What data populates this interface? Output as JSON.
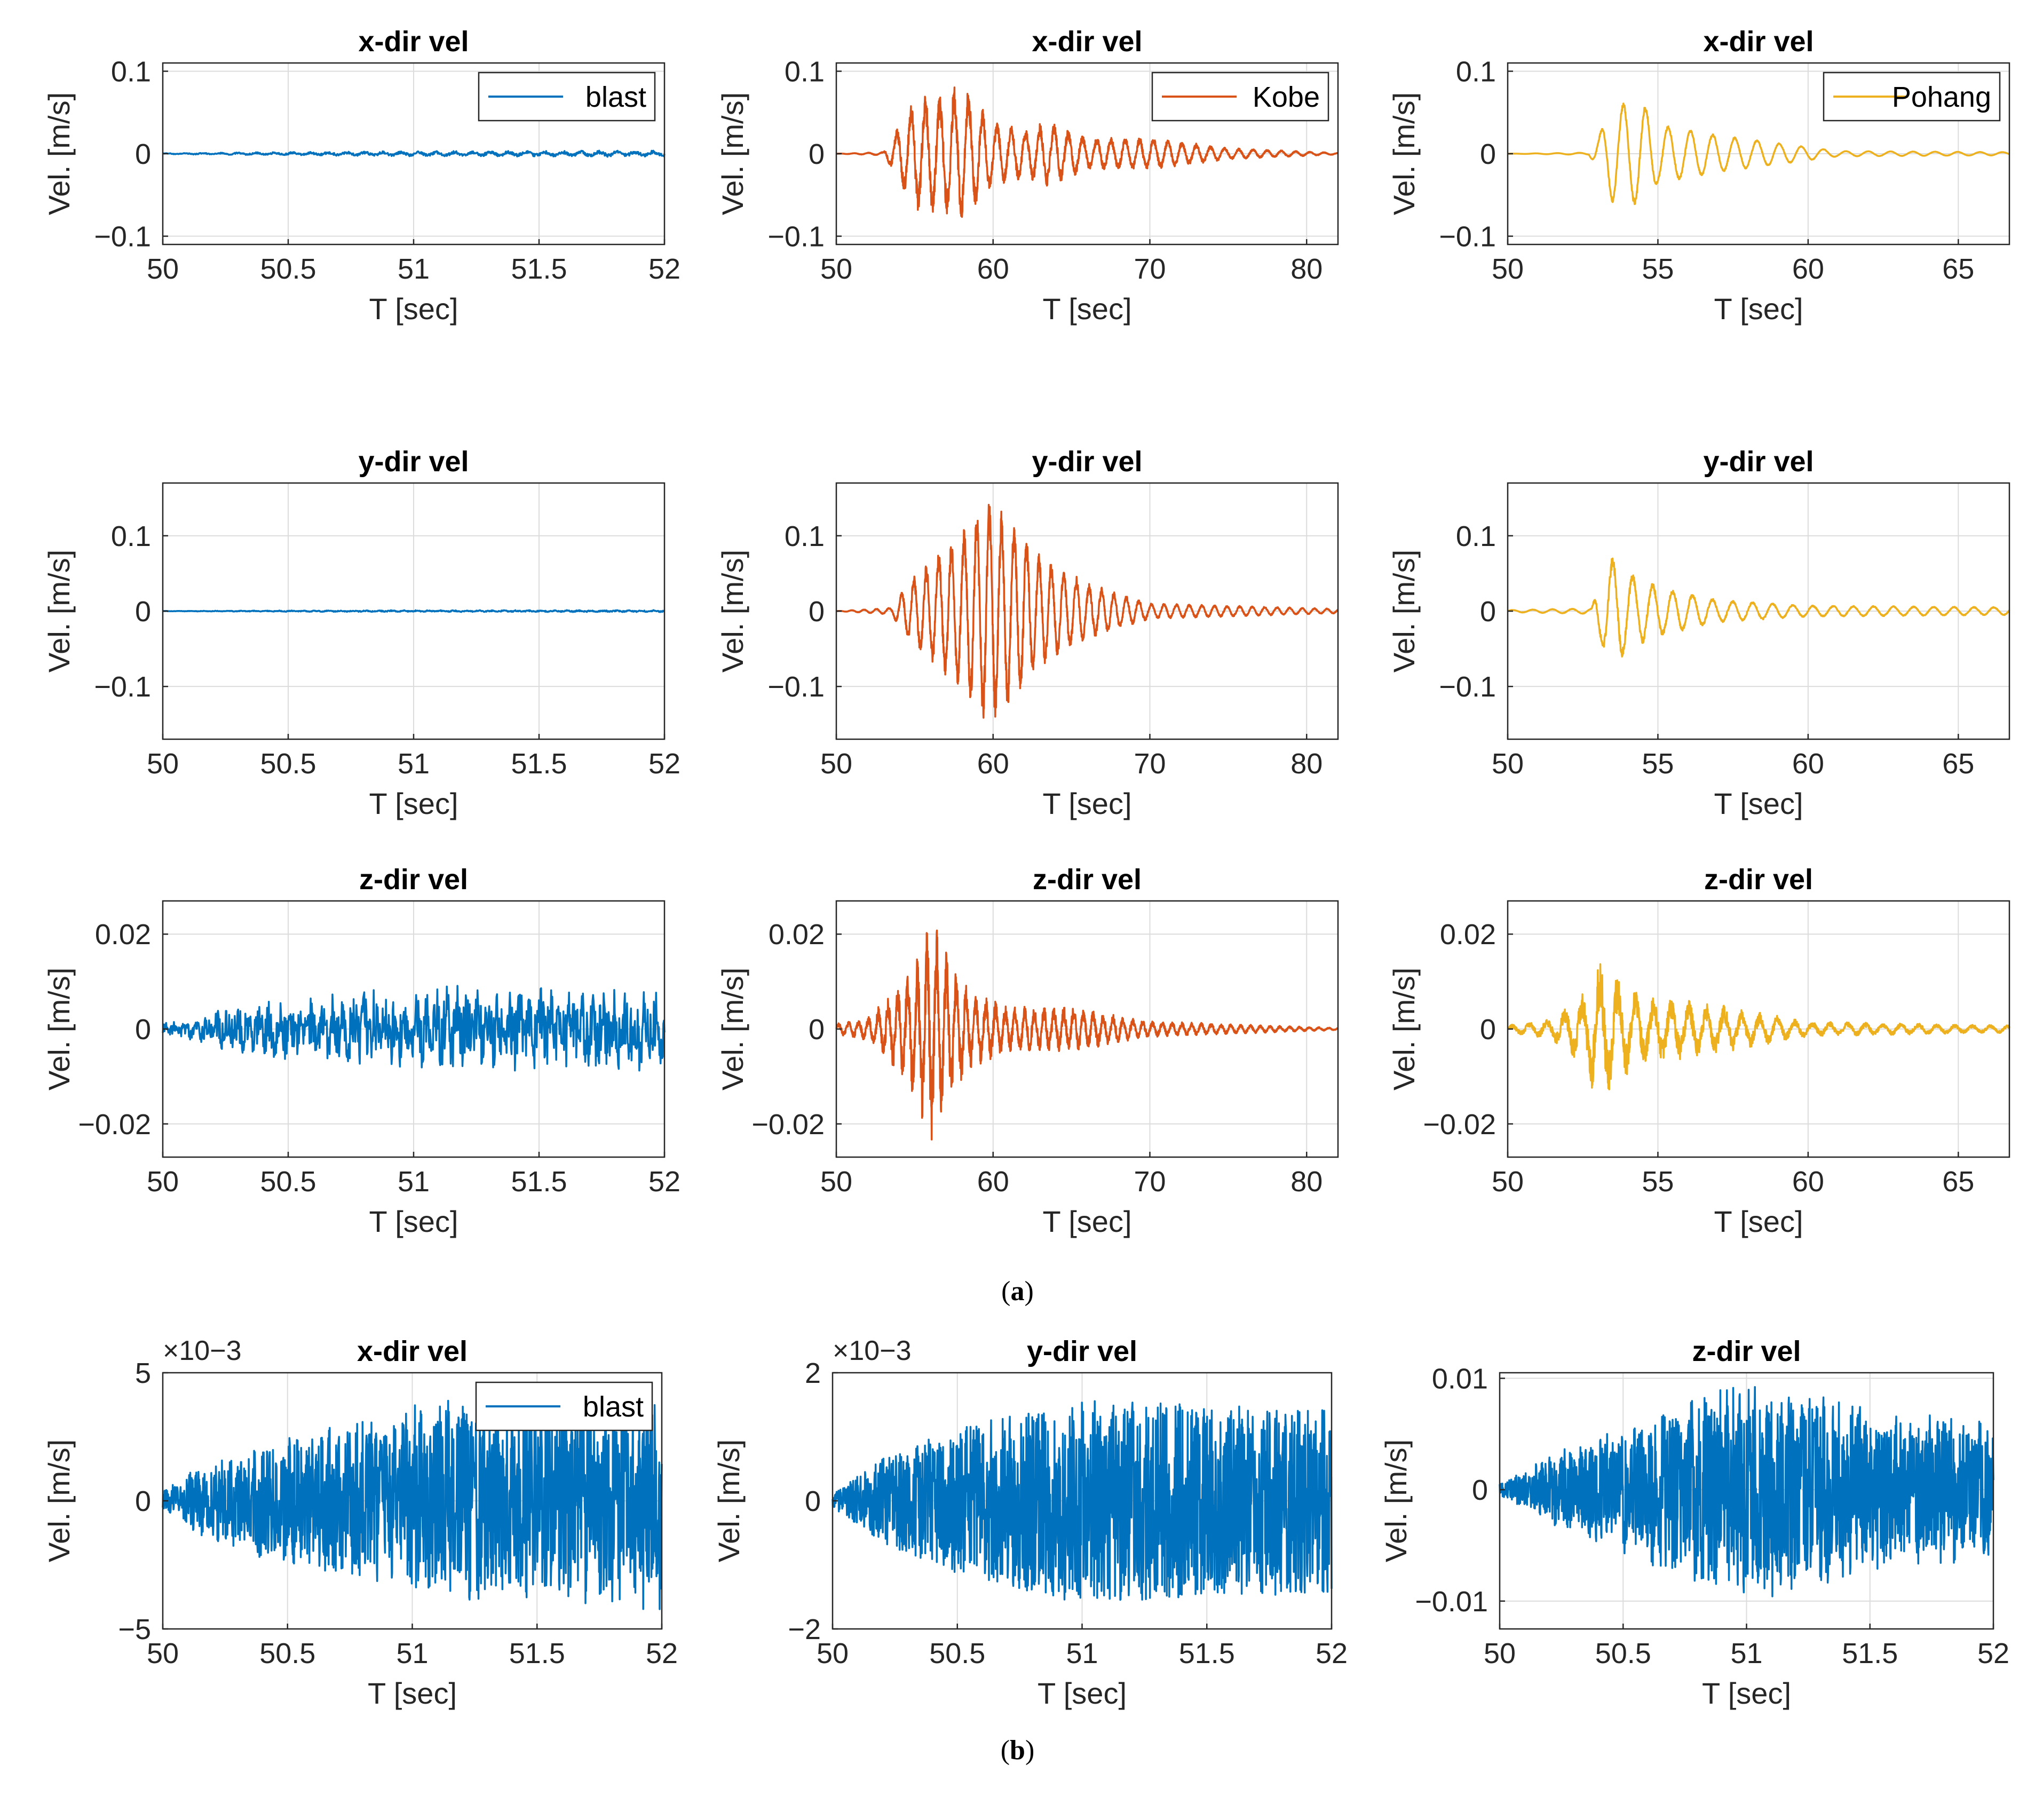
{
  "colors": {
    "blast": "#0072BD",
    "kobe": "#D95319",
    "pohang": "#EDB120",
    "axis": "#262626",
    "grid": "#dcdcdc"
  },
  "panel_labels": {
    "a": "a",
    "b": "b"
  },
  "chart_data": [
    {
      "id": "a11",
      "type": "line",
      "title": "x-dir vel",
      "xlabel": "T [sec]",
      "ylabel": "Vel. [m/s]",
      "xlim": [
        50,
        52
      ],
      "ylim": [
        -0.11,
        0.11
      ],
      "xticks": [
        50,
        50.5,
        51,
        51.5,
        52
      ],
      "xtick_labels": [
        "50",
        "50.5",
        "51",
        "51.5",
        "52"
      ],
      "yticks": [
        -0.1,
        0,
        0.1
      ],
      "ytick_labels": [
        "−0.1",
        "0",
        "0.1"
      ],
      "legend": "blast",
      "legend_position": "top-right",
      "series": [
        {
          "name": "blast",
          "color_key": "blast",
          "signal": {
            "start": 50.0,
            "end": 52.0,
            "n": 900,
            "peak": 0.004,
            "envelope": [
              [
                50,
                0.15
              ],
              [
                50.3,
                0.4
              ],
              [
                50.6,
                0.6
              ],
              [
                51,
                0.8
              ],
              [
                51.5,
                0.9
              ],
              [
                52,
                1.0
              ]
            ],
            "freq": 14,
            "noise": 0.5,
            "seed": 3
          }
        }
      ]
    },
    {
      "id": "a12",
      "type": "line",
      "title": "x-dir vel",
      "xlabel": "T [sec]",
      "ylabel": "Vel. [m/s]",
      "xlim": [
        50,
        82
      ],
      "ylim": [
        -0.11,
        0.11
      ],
      "xticks": [
        50,
        60,
        70,
        80
      ],
      "xtick_labels": [
        "50",
        "60",
        "70",
        "80"
      ],
      "yticks": [
        -0.1,
        0,
        0.1
      ],
      "ytick_labels": [
        "−0.1",
        "0",
        "0.1"
      ],
      "legend": "Kobe",
      "legend_position": "top-right",
      "series": [
        {
          "name": "Kobe",
          "color_key": "kobe",
          "signal": {
            "start": 50.0,
            "end": 82.0,
            "n": 2400,
            "peak": 0.1,
            "envelope": [
              [
                50,
                0
              ],
              [
                53,
                0.02
              ],
              [
                54,
                0.35
              ],
              [
                55,
                0.7
              ],
              [
                57,
                0.72
              ],
              [
                58,
                0.9
              ],
              [
                60,
                0.4
              ],
              [
                62,
                0.3
              ],
              [
                63.5,
                0.4
              ],
              [
                66,
                0.2
              ],
              [
                70,
                0.2
              ],
              [
                75,
                0.07
              ],
              [
                82,
                0.01
              ]
            ],
            "freq": 1.1,
            "noise": 0.2,
            "seed": 7
          }
        }
      ]
    },
    {
      "id": "a13",
      "type": "line",
      "title": "x-dir vel",
      "xlabel": "T [sec]",
      "ylabel": "Vel. [m/s]",
      "xlim": [
        50,
        66.7
      ],
      "ylim": [
        -0.11,
        0.11
      ],
      "xticks": [
        50,
        55,
        60,
        65
      ],
      "xtick_labels": [
        "50",
        "55",
        "60",
        "65"
      ],
      "yticks": [
        -0.1,
        0,
        0.1
      ],
      "ytick_labels": [
        "−0.1",
        "0",
        "0.1"
      ],
      "legend": "Pohang",
      "legend_position": "top-right",
      "series": [
        {
          "name": "Pohang",
          "color_key": "pohang",
          "signal": {
            "start": 50.0,
            "end": 66.7,
            "n": 1800,
            "peak": 0.065,
            "envelope": [
              [
                50,
                0
              ],
              [
                52.7,
                0.02
              ],
              [
                53,
                0.3
              ],
              [
                53.5,
                0.95
              ],
              [
                54.5,
                0.95
              ],
              [
                55,
                0.55
              ],
              [
                57,
                0.35
              ],
              [
                59,
                0.2
              ],
              [
                61,
                0.05
              ],
              [
                66.7,
                0.03
              ]
            ],
            "freq": 1.35,
            "noise": 0.05,
            "seed": 11
          }
        }
      ]
    },
    {
      "id": "a21",
      "type": "line",
      "title": "y-dir vel",
      "xlabel": "T [sec]",
      "ylabel": "Vel. [m/s]",
      "xlim": [
        50,
        52
      ],
      "ylim": [
        -0.17,
        0.17
      ],
      "xticks": [
        50,
        50.5,
        51,
        51.5,
        52
      ],
      "xtick_labels": [
        "50",
        "50.5",
        "51",
        "51.5",
        "52"
      ],
      "yticks": [
        -0.1,
        0,
        0.1
      ],
      "ytick_labels": [
        "−0.1",
        "0",
        "0.1"
      ],
      "series": [
        {
          "name": "blast",
          "color_key": "blast",
          "signal": {
            "start": 50.0,
            "end": 52.0,
            "n": 900,
            "peak": 0.0015,
            "envelope": [
              [
                50,
                0.2
              ],
              [
                50.5,
                0.6
              ],
              [
                51,
                0.8
              ],
              [
                52,
                0.9
              ]
            ],
            "freq": 20,
            "noise": 0.6,
            "seed": 5
          }
        }
      ]
    },
    {
      "id": "a22",
      "type": "line",
      "title": "y-dir vel",
      "xlabel": "T [sec]",
      "ylabel": "Vel. [m/s]",
      "xlim": [
        50,
        82
      ],
      "ylim": [
        -0.17,
        0.17
      ],
      "xticks": [
        50,
        60,
        70,
        80
      ],
      "xtick_labels": [
        "50",
        "60",
        "70",
        "80"
      ],
      "yticks": [
        -0.1,
        0,
        0.1
      ],
      "ytick_labels": [
        "−0.1",
        "0",
        "0.1"
      ],
      "series": [
        {
          "name": "Kobe",
          "color_key": "kobe",
          "signal": {
            "start": 50.0,
            "end": 82.0,
            "n": 2400,
            "peak": 0.15,
            "envelope": [
              [
                50,
                0
              ],
              [
                53.5,
                0.03
              ],
              [
                54.5,
                0.25
              ],
              [
                56,
                0.45
              ],
              [
                58,
                0.7
              ],
              [
                59.5,
                1.0
              ],
              [
                61,
                0.85
              ],
              [
                63,
                0.5
              ],
              [
                66,
                0.25
              ],
              [
                70,
                0.07
              ],
              [
                82,
                0.02
              ]
            ],
            "freq": 1.25,
            "noise": 0.15,
            "seed": 13
          }
        }
      ]
    },
    {
      "id": "a23",
      "type": "line",
      "title": "y-dir vel",
      "xlabel": "T [sec]",
      "ylabel": "Vel. [m/s]",
      "xlim": [
        50,
        66.7
      ],
      "ylim": [
        -0.17,
        0.17
      ],
      "xticks": [
        50,
        55,
        60,
        65
      ],
      "xtick_labels": [
        "50",
        "55",
        "60",
        "65"
      ],
      "yticks": [
        -0.1,
        0,
        0.1
      ],
      "ytick_labels": [
        "−0.1",
        "0",
        "0.1"
      ],
      "series": [
        {
          "name": "Pohang",
          "color_key": "pohang",
          "signal": {
            "start": 50.0,
            "end": 66.7,
            "n": 1800,
            "peak": 0.075,
            "envelope": [
              [
                50,
                0.02
              ],
              [
                52.8,
                0.05
              ],
              [
                53,
                0.5
              ],
              [
                53.5,
                1.0
              ],
              [
                54,
                0.7
              ],
              [
                55,
                0.45
              ],
              [
                57,
                0.2
              ],
              [
                60,
                0.1
              ],
              [
                66.7,
                0.07
              ]
            ],
            "freq": 1.5,
            "noise": 0.1,
            "seed": 17
          }
        }
      ]
    },
    {
      "id": "a31",
      "type": "line",
      "title": "z-dir vel",
      "xlabel": "T [sec]",
      "ylabel": "Vel. [m/s]",
      "xlim": [
        50,
        52
      ],
      "ylim": [
        -0.027,
        0.027
      ],
      "xticks": [
        50,
        50.5,
        51,
        51.5,
        52
      ],
      "xtick_labels": [
        "50",
        "50.5",
        "51",
        "51.5",
        "52"
      ],
      "yticks": [
        -0.02,
        0,
        0.02
      ],
      "ytick_labels": [
        "−0.02",
        "0",
        "0.02"
      ],
      "series": [
        {
          "name": "blast",
          "color_key": "blast",
          "signal": {
            "start": 50.0,
            "end": 52.0,
            "n": 900,
            "peak": 0.011,
            "envelope": [
              [
                50,
                0.12
              ],
              [
                50.15,
                0.25
              ],
              [
                50.3,
                0.5
              ],
              [
                50.6,
                0.65
              ],
              [
                51,
                0.85
              ],
              [
                51.5,
                0.85
              ],
              [
                52,
                0.8
              ]
            ],
            "freq": 24,
            "noise": 0.7,
            "seed": 19
          }
        }
      ]
    },
    {
      "id": "a32",
      "type": "line",
      "title": "z-dir vel",
      "xlabel": "T [sec]",
      "ylabel": "Vel. [m/s]",
      "xlim": [
        50,
        82
      ],
      "ylim": [
        -0.027,
        0.027
      ],
      "xticks": [
        50,
        60,
        70,
        80
      ],
      "xtick_labels": [
        "50",
        "60",
        "70",
        "80"
      ],
      "yticks": [
        -0.02,
        0,
        0.02
      ],
      "ytick_labels": [
        "−0.02",
        "0",
        "0.02"
      ],
      "series": [
        {
          "name": "Kobe",
          "color_key": "kobe",
          "signal": {
            "start": 50.0,
            "end": 82.0,
            "n": 2400,
            "peak": 0.024,
            "envelope": [
              [
                50,
                0.05
              ],
              [
                52,
                0.1
              ],
              [
                54,
                0.4
              ],
              [
                55,
                0.6
              ],
              [
                56,
                1.0
              ],
              [
                57,
                0.7
              ],
              [
                58.5,
                0.35
              ],
              [
                61,
                0.2
              ],
              [
                65,
                0.2
              ],
              [
                70,
                0.07
              ],
              [
                82,
                0.01
              ]
            ],
            "freq": 1.6,
            "noise": 0.3,
            "seed": 23
          }
        }
      ]
    },
    {
      "id": "a33",
      "type": "line",
      "title": "z-dir vel",
      "xlabel": "T [sec]",
      "ylabel": "Vel. [m/s]",
      "xlim": [
        50,
        66.7
      ],
      "ylim": [
        -0.027,
        0.027
      ],
      "xticks": [
        50,
        55,
        60,
        65
      ],
      "xtick_labels": [
        "50",
        "55",
        "60",
        "65"
      ],
      "yticks": [
        -0.02,
        0,
        0.02
      ],
      "ytick_labels": [
        "−0.02",
        "0",
        "0.02"
      ],
      "series": [
        {
          "name": "Pohang",
          "color_key": "pohang",
          "signal": {
            "start": 50.0,
            "end": 66.7,
            "n": 1800,
            "peak": 0.016,
            "envelope": [
              [
                50,
                0.05
              ],
              [
                51.5,
                0.15
              ],
              [
                52.5,
                0.5
              ],
              [
                53,
                1.0
              ],
              [
                53.5,
                0.8
              ],
              [
                54.5,
                0.45
              ],
              [
                56,
                0.4
              ],
              [
                58,
                0.25
              ],
              [
                60,
                0.1
              ],
              [
                66.7,
                0.05
              ]
            ],
            "freq": 1.7,
            "noise": 0.35,
            "seed": 29
          }
        }
      ]
    },
    {
      "id": "b1",
      "type": "line",
      "title": "x-dir vel",
      "xlabel": "T [sec]",
      "ylabel": "Vel. [m/s]",
      "exponent": "10−3",
      "xlim": [
        50,
        52
      ],
      "ylim": [
        -0.005,
        0.005
      ],
      "xticks": [
        50,
        50.5,
        51,
        51.5,
        52
      ],
      "xtick_labels": [
        "50",
        "50.5",
        "51",
        "51.5",
        "52"
      ],
      "yticks": [
        -0.005,
        0,
        0.005
      ],
      "ytick_labels": [
        "−5",
        "0",
        "5"
      ],
      "legend": "blast",
      "legend_position": "top-right",
      "series": [
        {
          "name": "blast",
          "color_key": "blast",
          "signal": {
            "start": 50.0,
            "end": 52.0,
            "n": 1400,
            "peak": 0.0046,
            "envelope": [
              [
                50,
                0.08
              ],
              [
                50.15,
                0.3
              ],
              [
                50.4,
                0.5
              ],
              [
                50.7,
                0.65
              ],
              [
                51,
                0.85
              ],
              [
                51.5,
                0.9
              ],
              [
                52,
                0.95
              ]
            ],
            "freq": 30,
            "noise": 0.9,
            "seed": 31
          }
        }
      ]
    },
    {
      "id": "b2",
      "type": "line",
      "title": "y-dir vel",
      "xlabel": "T [sec]",
      "ylabel": "Vel. [m/s]",
      "exponent": "10−3",
      "xlim": [
        50,
        52
      ],
      "ylim": [
        -0.002,
        0.002
      ],
      "xticks": [
        50,
        50.5,
        51,
        51.5,
        52
      ],
      "xtick_labels": [
        "50",
        "50.5",
        "51",
        "51.5",
        "52"
      ],
      "yticks": [
        -0.002,
        0,
        0.002
      ],
      "ytick_labels": [
        "−2",
        "0",
        "2"
      ],
      "series": [
        {
          "name": "blast",
          "color_key": "blast",
          "signal": {
            "start": 50.0,
            "end": 52.0,
            "n": 1600,
            "peak": 0.0019,
            "envelope": [
              [
                50,
                0.05
              ],
              [
                50.2,
                0.35
              ],
              [
                50.5,
                0.6
              ],
              [
                51,
                0.85
              ],
              [
                51.5,
                0.8
              ],
              [
                52,
                0.75
              ]
            ],
            "freq": 45,
            "noise": 1.0,
            "seed": 37
          }
        }
      ]
    },
    {
      "id": "b3",
      "type": "line",
      "title": "z-dir vel",
      "xlabel": "T [sec]",
      "ylabel": "Vel. [m/s]",
      "xlim": [
        50,
        52
      ],
      "ylim": [
        -0.0125,
        0.0105
      ],
      "xticks": [
        50,
        50.5,
        51,
        51.5,
        52
      ],
      "xtick_labels": [
        "50",
        "50.5",
        "51",
        "51.5",
        "52"
      ],
      "yticks": [
        -0.01,
        0,
        0.01
      ],
      "ytick_labels": [
        "−0.01",
        "0",
        "0.01"
      ],
      "series": [
        {
          "name": "blast",
          "color_key": "blast",
          "signal": {
            "start": 50.0,
            "end": 52.0,
            "n": 1500,
            "peak": 0.0105,
            "envelope": [
              [
                50,
                0.05
              ],
              [
                50.2,
                0.3
              ],
              [
                50.5,
                0.55
              ],
              [
                50.9,
                0.9
              ],
              [
                51.1,
                0.95
              ],
              [
                51.5,
                0.7
              ],
              [
                52,
                0.6
              ]
            ],
            "freq": 35,
            "noise": 0.9,
            "seed": 41
          }
        }
      ]
    }
  ]
}
